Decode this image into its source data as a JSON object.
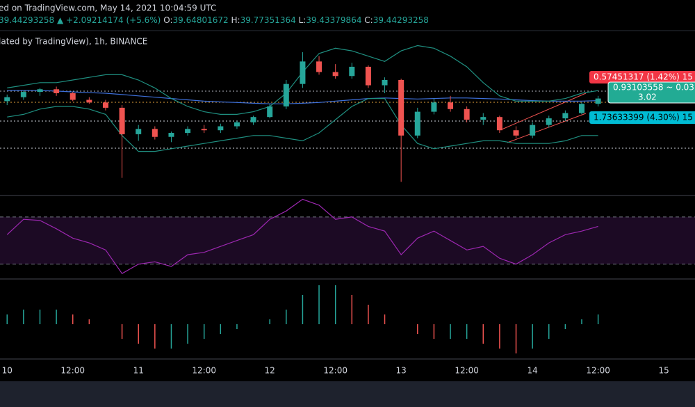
{
  "header": {
    "source": "ed on TradingView.com, May 14, 2021 10:04:59 UTC",
    "last": "39.44293258",
    "arrow": "▲",
    "change": "+2.09214174 (+5.6%)",
    "ohlc": [
      {
        "key": "O:",
        "value": "39.64801672"
      },
      {
        "key": "H:",
        "value": "39.77351364"
      },
      {
        "key": "L:",
        "value": "39.43379864"
      },
      {
        "key": "C:",
        "value": "39.44293258"
      }
    ],
    "symbol": "lated by TradingView), 1h, BINANCE"
  },
  "position_tool": {
    "target_label": "0.57451317 (1.42%) 15",
    "entry_label": "0.93103558 ~ 0.03",
    "entry_sub": "3.02",
    "stop_label": "1.73633399 (4.30%) 15"
  },
  "chart_data": {
    "type": "candlestick",
    "x": [
      0,
      3,
      6,
      9,
      12,
      15,
      18,
      21,
      24,
      27,
      30,
      33,
      36,
      39,
      42,
      45,
      48,
      51,
      54,
      57,
      60,
      63,
      66,
      69,
      72,
      75,
      78,
      81,
      84,
      87,
      90,
      93,
      96,
      99,
      102,
      105,
      108
    ],
    "xlim": [
      -1.3,
      125.7
    ],
    "xticks": [
      {
        "value": 0,
        "label": "10"
      },
      {
        "value": 12,
        "label": "12:00"
      },
      {
        "value": 24,
        "label": "11"
      },
      {
        "value": 36,
        "label": "12:00"
      },
      {
        "value": 48,
        "label": "12"
      },
      {
        "value": 60,
        "label": "12:00"
      },
      {
        "value": 72,
        "label": "13"
      },
      {
        "value": 84,
        "label": "12:00"
      },
      {
        "value": 96,
        "label": "14"
      },
      {
        "value": 108,
        "label": "12:00"
      },
      {
        "value": 120,
        "label": "15"
      }
    ],
    "ylim": [
      36.96,
      43.14
    ],
    "up_color": "#26a69a",
    "down_color": "#ef5350",
    "open": [
      40.5,
      40.65,
      40.85,
      40.95,
      40.8,
      40.55,
      40.45,
      40.25,
      39.25,
      39.45,
      39.15,
      39.3,
      39.45,
      39.4,
      39.55,
      39.7,
      39.9,
      40.3,
      41.15,
      42.0,
      41.6,
      41.45,
      41.8,
      41.1,
      41.3,
      39.2,
      40.1,
      40.45,
      40.2,
      39.8,
      39.9,
      39.4,
      39.2,
      39.6,
      39.85,
      40.05,
      40.4
    ],
    "high": [
      40.75,
      40.9,
      41.0,
      41.05,
      40.85,
      40.65,
      40.55,
      40.35,
      39.6,
      39.55,
      39.35,
      39.55,
      39.6,
      39.65,
      39.75,
      39.95,
      40.4,
      41.3,
      42.35,
      42.2,
      41.9,
      41.95,
      41.85,
      41.4,
      41.35,
      40.25,
      40.6,
      40.7,
      40.3,
      40.05,
      39.95,
      39.55,
      39.7,
      39.95,
      40.15,
      40.45,
      40.7
    ],
    "low": [
      40.35,
      40.55,
      40.7,
      40.7,
      40.5,
      40.4,
      40.15,
      37.6,
      39.0,
      39.05,
      38.95,
      39.2,
      39.3,
      39.3,
      39.45,
      39.6,
      39.85,
      40.2,
      41.0,
      41.5,
      41.35,
      41.35,
      41.0,
      40.8,
      37.45,
      39.1,
      40.0,
      40.1,
      39.7,
      39.6,
      39.3,
      39.1,
      39.1,
      39.5,
      39.75,
      40.0,
      40.3
    ],
    "close": [
      40.65,
      40.85,
      40.95,
      40.8,
      40.55,
      40.45,
      40.25,
      39.25,
      39.45,
      39.15,
      39.3,
      39.45,
      39.4,
      39.55,
      39.7,
      39.9,
      40.3,
      41.15,
      42.0,
      41.6,
      41.45,
      41.8,
      41.1,
      41.3,
      39.2,
      40.1,
      40.45,
      40.2,
      39.8,
      39.9,
      39.4,
      39.2,
      39.6,
      39.85,
      40.05,
      40.4,
      40.6
    ],
    "overlays": [
      {
        "color": "#3d6fd9",
        "values": [
          40.9,
          40.9,
          40.9,
          40.88,
          40.85,
          40.82,
          40.8,
          40.75,
          40.7,
          40.65,
          40.6,
          40.55,
          40.5,
          40.47,
          40.45,
          40.42,
          40.4,
          40.4,
          40.42,
          40.45,
          40.5,
          40.55,
          40.6,
          40.62,
          40.6,
          40.58,
          40.6,
          40.62,
          40.62,
          40.6,
          40.58,
          40.55,
          40.52,
          40.5,
          40.5,
          40.5,
          40.52
        ]
      },
      {
        "color": "#1f8f80",
        "values": [
          41.0,
          41.1,
          41.2,
          41.2,
          41.3,
          41.4,
          41.5,
          41.5,
          41.3,
          41.0,
          40.6,
          40.3,
          40.1,
          40.0,
          40.0,
          40.1,
          40.3,
          40.8,
          41.6,
          42.3,
          42.5,
          42.4,
          42.2,
          42.0,
          42.4,
          42.6,
          42.5,
          42.2,
          41.8,
          41.2,
          40.7,
          40.5,
          40.5,
          40.5,
          40.6,
          40.8,
          40.9
        ]
      },
      {
        "color": "#1f8f80",
        "values": [
          39.9,
          40.0,
          40.2,
          40.3,
          40.3,
          40.2,
          40.0,
          39.2,
          38.6,
          38.6,
          38.7,
          38.8,
          38.9,
          39.0,
          39.1,
          39.2,
          39.2,
          39.1,
          39.0,
          39.3,
          39.8,
          40.3,
          40.6,
          40.6,
          39.6,
          38.9,
          38.7,
          38.8,
          38.9,
          39.0,
          39.0,
          38.9,
          38.9,
          38.9,
          39.0,
          39.2,
          39.2
        ]
      }
    ],
    "rsi": {
      "color": "#9c27b0",
      "ylim": [
        18,
        87
      ],
      "bands": [
        30,
        70
      ],
      "values": [
        55,
        68,
        67,
        60,
        52,
        48,
        42,
        22,
        30,
        32,
        28,
        38,
        40,
        45,
        50,
        55,
        68,
        75,
        85,
        80,
        68,
        70,
        62,
        58,
        38,
        52,
        58,
        50,
        42,
        45,
        35,
        30,
        38,
        48,
        55,
        58,
        62
      ]
    },
    "histogram": {
      "ylim": [
        -7,
        9
      ],
      "values": [
        2,
        3,
        3,
        3,
        2,
        1,
        0,
        -3,
        -4,
        -5,
        -5,
        -4,
        -3,
        -2,
        -1,
        0,
        1,
        3,
        6,
        8,
        8,
        6,
        4,
        2,
        0,
        -2,
        -3,
        -3,
        -3,
        -4,
        -5,
        -6,
        -5,
        -3,
        -1,
        1,
        2
      ]
    }
  }
}
